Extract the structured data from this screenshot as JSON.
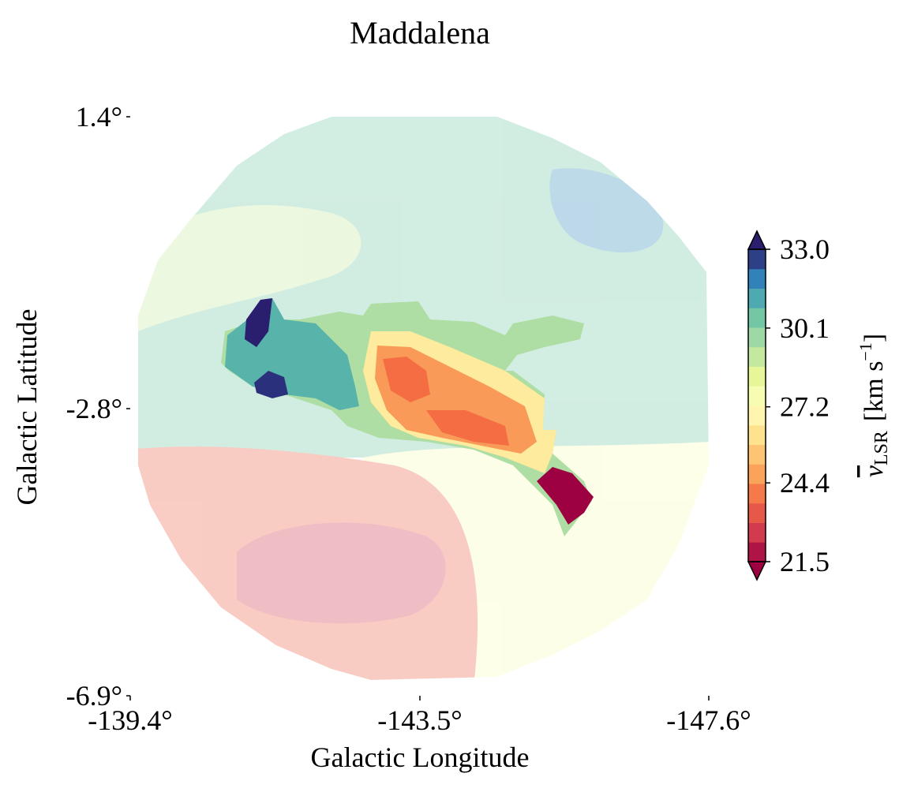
{
  "chart_data": {
    "type": "heatmap",
    "title": "Maddalena",
    "xlabel": "Galactic Longitude",
    "ylabel": "Galactic Latitude",
    "xlim": [
      -139.4,
      -147.6
    ],
    "ylim": [
      -6.9,
      1.4
    ],
    "x_ticks": [
      "-139.4°",
      "-143.5°",
      "-147.6°"
    ],
    "y_ticks": [
      "1.4°",
      "-2.8°",
      "-6.9°"
    ],
    "y_tick_values": [
      1.4,
      -2.8,
      -6.9
    ],
    "x_tick_values": [
      -139.4,
      -143.5,
      -147.6
    ],
    "colorbar": {
      "label_main": "v",
      "label_sub": "LSR",
      "label_units": "[km s",
      "label_exp": "−1",
      "label_close": "]",
      "min": 21.5,
      "max": 33.0,
      "ticks": [
        "21.5",
        "24.4",
        "27.2",
        "30.1",
        "33.0"
      ],
      "tick_values": [
        21.5,
        24.4,
        27.2,
        30.1,
        33.0
      ],
      "colormap": "Spectral",
      "extend": "both"
    },
    "map": {
      "shape": "circular footprint",
      "background_field_alpha": 0.3,
      "highlighted_region": "central cloud shown at full opacity"
    },
    "regions": [
      {
        "name": "upper-sky",
        "approx_v": 30.5
      },
      {
        "name": "upper-right-lobe",
        "approx_v": 31.8
      },
      {
        "name": "left-middle-band",
        "approx_v": 29.0
      },
      {
        "name": "lower-left-field",
        "approx_v": 23.5
      },
      {
        "name": "lower-left-core",
        "approx_v": 22.5
      },
      {
        "name": "lower-right-field",
        "approx_v": 27.5
      },
      {
        "name": "cloud-blue-lobe",
        "approx_v": 31.0
      },
      {
        "name": "cloud-dark-core-upper",
        "approx_v": 33.0
      },
      {
        "name": "cloud-dark-core-lower",
        "approx_v": 32.8
      },
      {
        "name": "cloud-teal-edge",
        "approx_v": 29.5
      },
      {
        "name": "cloud-orange-body",
        "approx_v": 24.6
      },
      {
        "name": "cloud-orange-core",
        "approx_v": 23.8
      },
      {
        "name": "cloud-yellow-rim",
        "approx_v": 26.5
      },
      {
        "name": "cloud-red-tail",
        "approx_v": 21.5
      }
    ]
  }
}
